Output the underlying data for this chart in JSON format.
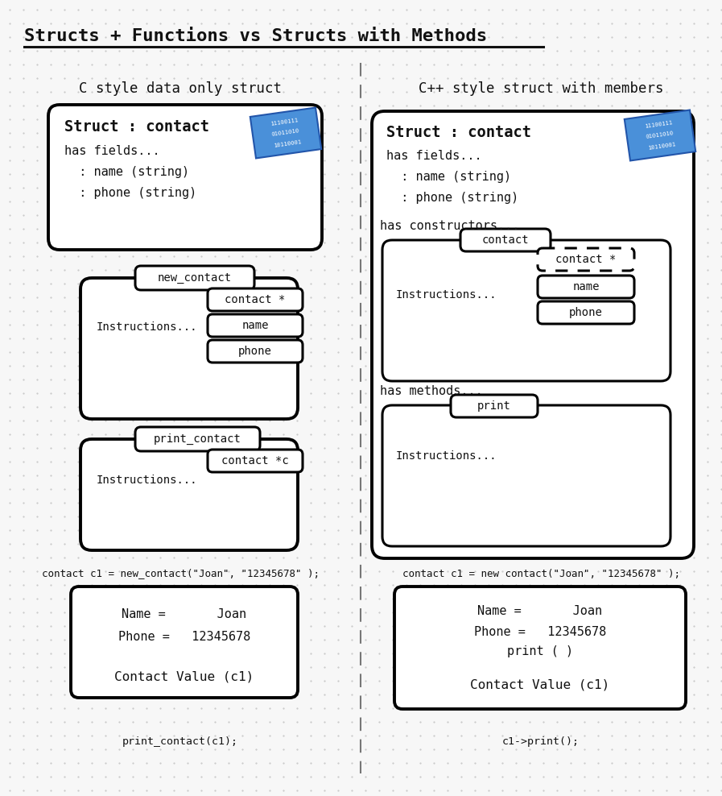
{
  "title": "Structs + Functions vs Structs with Methods",
  "bg_color": "#f7f7f7",
  "dot_color": "#c8c8c8",
  "left_header": "C style data only struct",
  "right_header": "C++ style struct with members",
  "left_code1": "contact c1 = new_contact(\"Joan\", \"12345678\" );",
  "right_code1": "contact c1 = new contact(\"Joan\", \"12345678\" );",
  "left_code2": "print_contact(c1);",
  "right_code2": "c1->print();",
  "font_color": "#111111",
  "card_color": "#4a90d9",
  "card_edge": "#2255aa"
}
